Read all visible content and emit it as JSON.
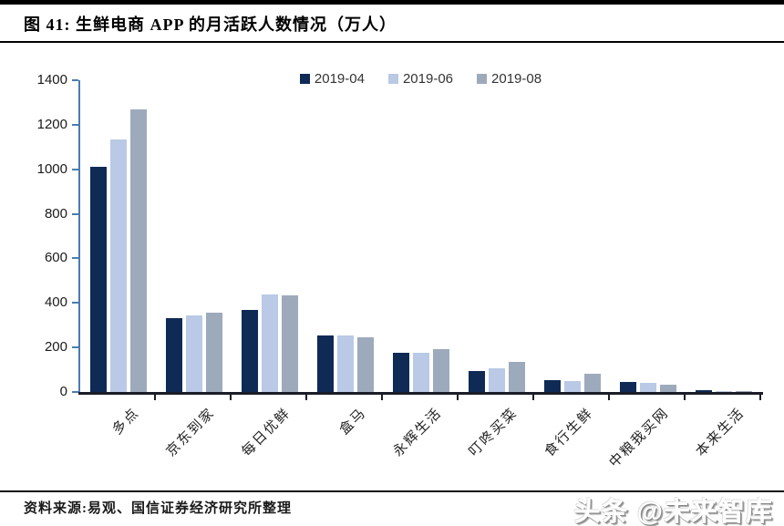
{
  "header": {
    "title": "图 41:  生鲜电商 APP 的月活跃人数情况（万人）"
  },
  "chart_data": {
    "type": "bar",
    "title": "生鲜电商 APP 的月活跃人数情况（万人）",
    "categories": [
      "多点",
      "京东到家",
      "每日优鲜",
      "盒马",
      "永辉生活",
      "叮咚买菜",
      "食行生鲜",
      "中粮我买网",
      "本来生活"
    ],
    "series": [
      {
        "name": "2019-04",
        "color": "#0e2a55",
        "values": [
          1010,
          330,
          370,
          255,
          178,
          95,
          52,
          45,
          10
        ]
      },
      {
        "name": "2019-06",
        "color": "#b9c9e6",
        "values": [
          1132,
          344,
          440,
          253,
          174,
          108,
          50,
          40,
          6
        ]
      },
      {
        "name": "2019-08",
        "color": "#9daabc",
        "values": [
          1268,
          356,
          435,
          244,
          192,
          136,
          80,
          33,
          3
        ]
      }
    ],
    "xlabel": "",
    "ylabel": "",
    "ylim": [
      0,
      1400
    ],
    "ytick_step": 200,
    "yticks": [
      0,
      200,
      400,
      600,
      800,
      1000,
      1200,
      1400
    ],
    "grid": false,
    "legend_position": "top-center",
    "axis_colors": {
      "y_axis": "#4a7cb0",
      "x_axis": "#1c1c28"
    }
  },
  "footer": {
    "source": "资料来源:易观、国信证券经济研究所整理",
    "watermark": "头条 @未来智库"
  }
}
